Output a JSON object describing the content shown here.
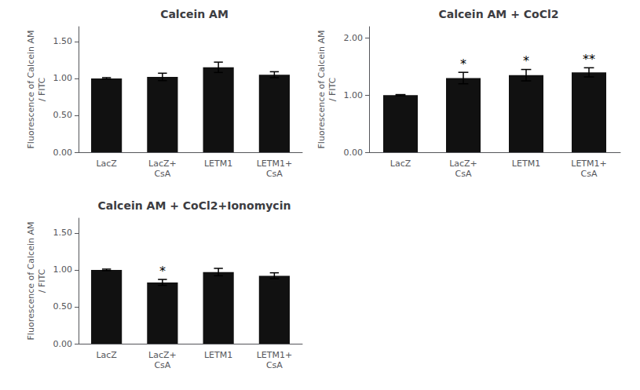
{
  "chart_data": [
    {
      "type": "bar",
      "title": "Calcein AM",
      "categories": [
        "LacZ",
        "LacZ+\nCsA",
        "LETM1",
        "LETM1+\nCsA"
      ],
      "values": [
        1.0,
        1.02,
        1.15,
        1.05
      ],
      "errors": [
        0.01,
        0.05,
        0.07,
        0.04
      ],
      "color": "#111111",
      "ylabel": "Fluorescence of Calcein AM\n/ FITC",
      "ylim": [
        0,
        1.7
      ],
      "yticks": [
        {
          "value": 0,
          "label": "0.00"
        },
        {
          "value": 0.5,
          "label": "0.50"
        },
        {
          "value": 1,
          "label": "1.00"
        },
        {
          "value": 1.5,
          "label": "1.50"
        }
      ],
      "grid": false
    },
    {
      "type": "bar",
      "title": "Calcein AM + CoCl2",
      "categories": [
        "LacZ",
        "LacZ+\nCsA",
        "LETM1",
        "LETM1+\nCsA"
      ],
      "values": [
        1.0,
        1.3,
        1.35,
        1.4
      ],
      "errors": [
        0.01,
        0.1,
        0.1,
        0.08
      ],
      "annotations": [
        {
          "category": "LacZ+\nCsA",
          "text": "*"
        },
        {
          "category": "LETM1",
          "text": "*"
        },
        {
          "category": "LETM1+\nCsA",
          "text": "**"
        }
      ],
      "color": "#111111",
      "ylabel": "Fluorescence of Calcein AM\n/ FITC",
      "ylim": [
        0,
        2.2
      ],
      "yticks": [
        {
          "value": 0,
          "label": "0.00"
        },
        {
          "value": 1,
          "label": "1.00"
        },
        {
          "value": 2,
          "label": "2.00"
        }
      ],
      "grid": false
    },
    {
      "type": "bar",
      "title": "Calcein AM + CoCl2+Ionomycin",
      "categories": [
        "LacZ",
        "LacZ+\nCsA",
        "LETM1",
        "LETM1+\nCsA"
      ],
      "values": [
        1.0,
        0.83,
        0.97,
        0.92
      ],
      "errors": [
        0.01,
        0.04,
        0.05,
        0.04
      ],
      "annotations": [
        {
          "category": "LacZ+\nCsA",
          "text": "*"
        }
      ],
      "color": "#111111",
      "ylabel": "Fluorescence of Calcein AM\n/ FITC",
      "ylim": [
        0,
        1.7
      ],
      "yticks": [
        {
          "value": 0,
          "label": "0.00"
        },
        {
          "value": 0.5,
          "label": "0.50"
        },
        {
          "value": 1,
          "label": "1.00"
        },
        {
          "value": 1.5,
          "label": "1.50"
        }
      ],
      "grid": false
    }
  ]
}
